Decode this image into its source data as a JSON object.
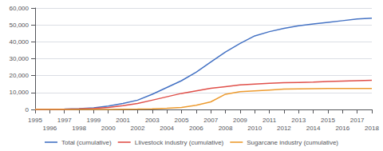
{
  "chart_data": {
    "type": "line",
    "x": [
      1995,
      1996,
      1997,
      1998,
      1999,
      2000,
      2001,
      2002,
      2003,
      2004,
      2005,
      2006,
      2007,
      2008,
      2009,
      2010,
      2011,
      2012,
      2013,
      2014,
      2015,
      2016,
      2017,
      2018
    ],
    "series": [
      {
        "name": "Total (cumulative)",
        "color": "#4472C4",
        "values": [
          50,
          100,
          200,
          500,
          1000,
          2000,
          3500,
          5500,
          9000,
          13000,
          17000,
          22000,
          28000,
          34000,
          39000,
          43500,
          46000,
          48000,
          49500,
          50500,
          51500,
          52500,
          53500,
          54000
        ]
      },
      {
        "name": "LIivestock industry (cumulative)",
        "color": "#E0504A",
        "values": [
          30,
          60,
          120,
          300,
          600,
          1200,
          2200,
          3500,
          5500,
          7500,
          9500,
          11000,
          12500,
          13500,
          14500,
          15000,
          15500,
          15800,
          16000,
          16200,
          16500,
          16800,
          17000,
          17200
        ]
      },
      {
        "name": "Sugarcane industry (cumulative)",
        "color": "#ED9B2F",
        "values": [
          0,
          0,
          0,
          0,
          0,
          0,
          100,
          200,
          400,
          700,
          1200,
          2500,
          4500,
          9000,
          10500,
          11000,
          11500,
          12000,
          12200,
          12300,
          12400,
          12400,
          12400,
          12400
        ]
      }
    ],
    "xlim": [
      1995,
      2018
    ],
    "xticks": [
      1995,
      1996,
      1997,
      1998,
      1999,
      2000,
      2001,
      2002,
      2003,
      2004,
      2005,
      2006,
      2007,
      2008,
      2009,
      2010,
      2011,
      2012,
      2013,
      2014,
      2015,
      2016,
      2017,
      2018
    ],
    "ylim": [
      0,
      60000
    ],
    "yticks": [
      0,
      {
        "value": 10000,
        "label": "10,000"
      },
      {
        "value": 20000,
        "label": "20,000"
      },
      {
        "value": 30000,
        "label": "30,000"
      },
      {
        "value": 40000,
        "label": "40,000"
      },
      {
        "value": 50000,
        "label": "50,000"
      },
      {
        "value": 60000,
        "label": "60,000"
      }
    ],
    "grid": true,
    "legend": "bottom"
  }
}
